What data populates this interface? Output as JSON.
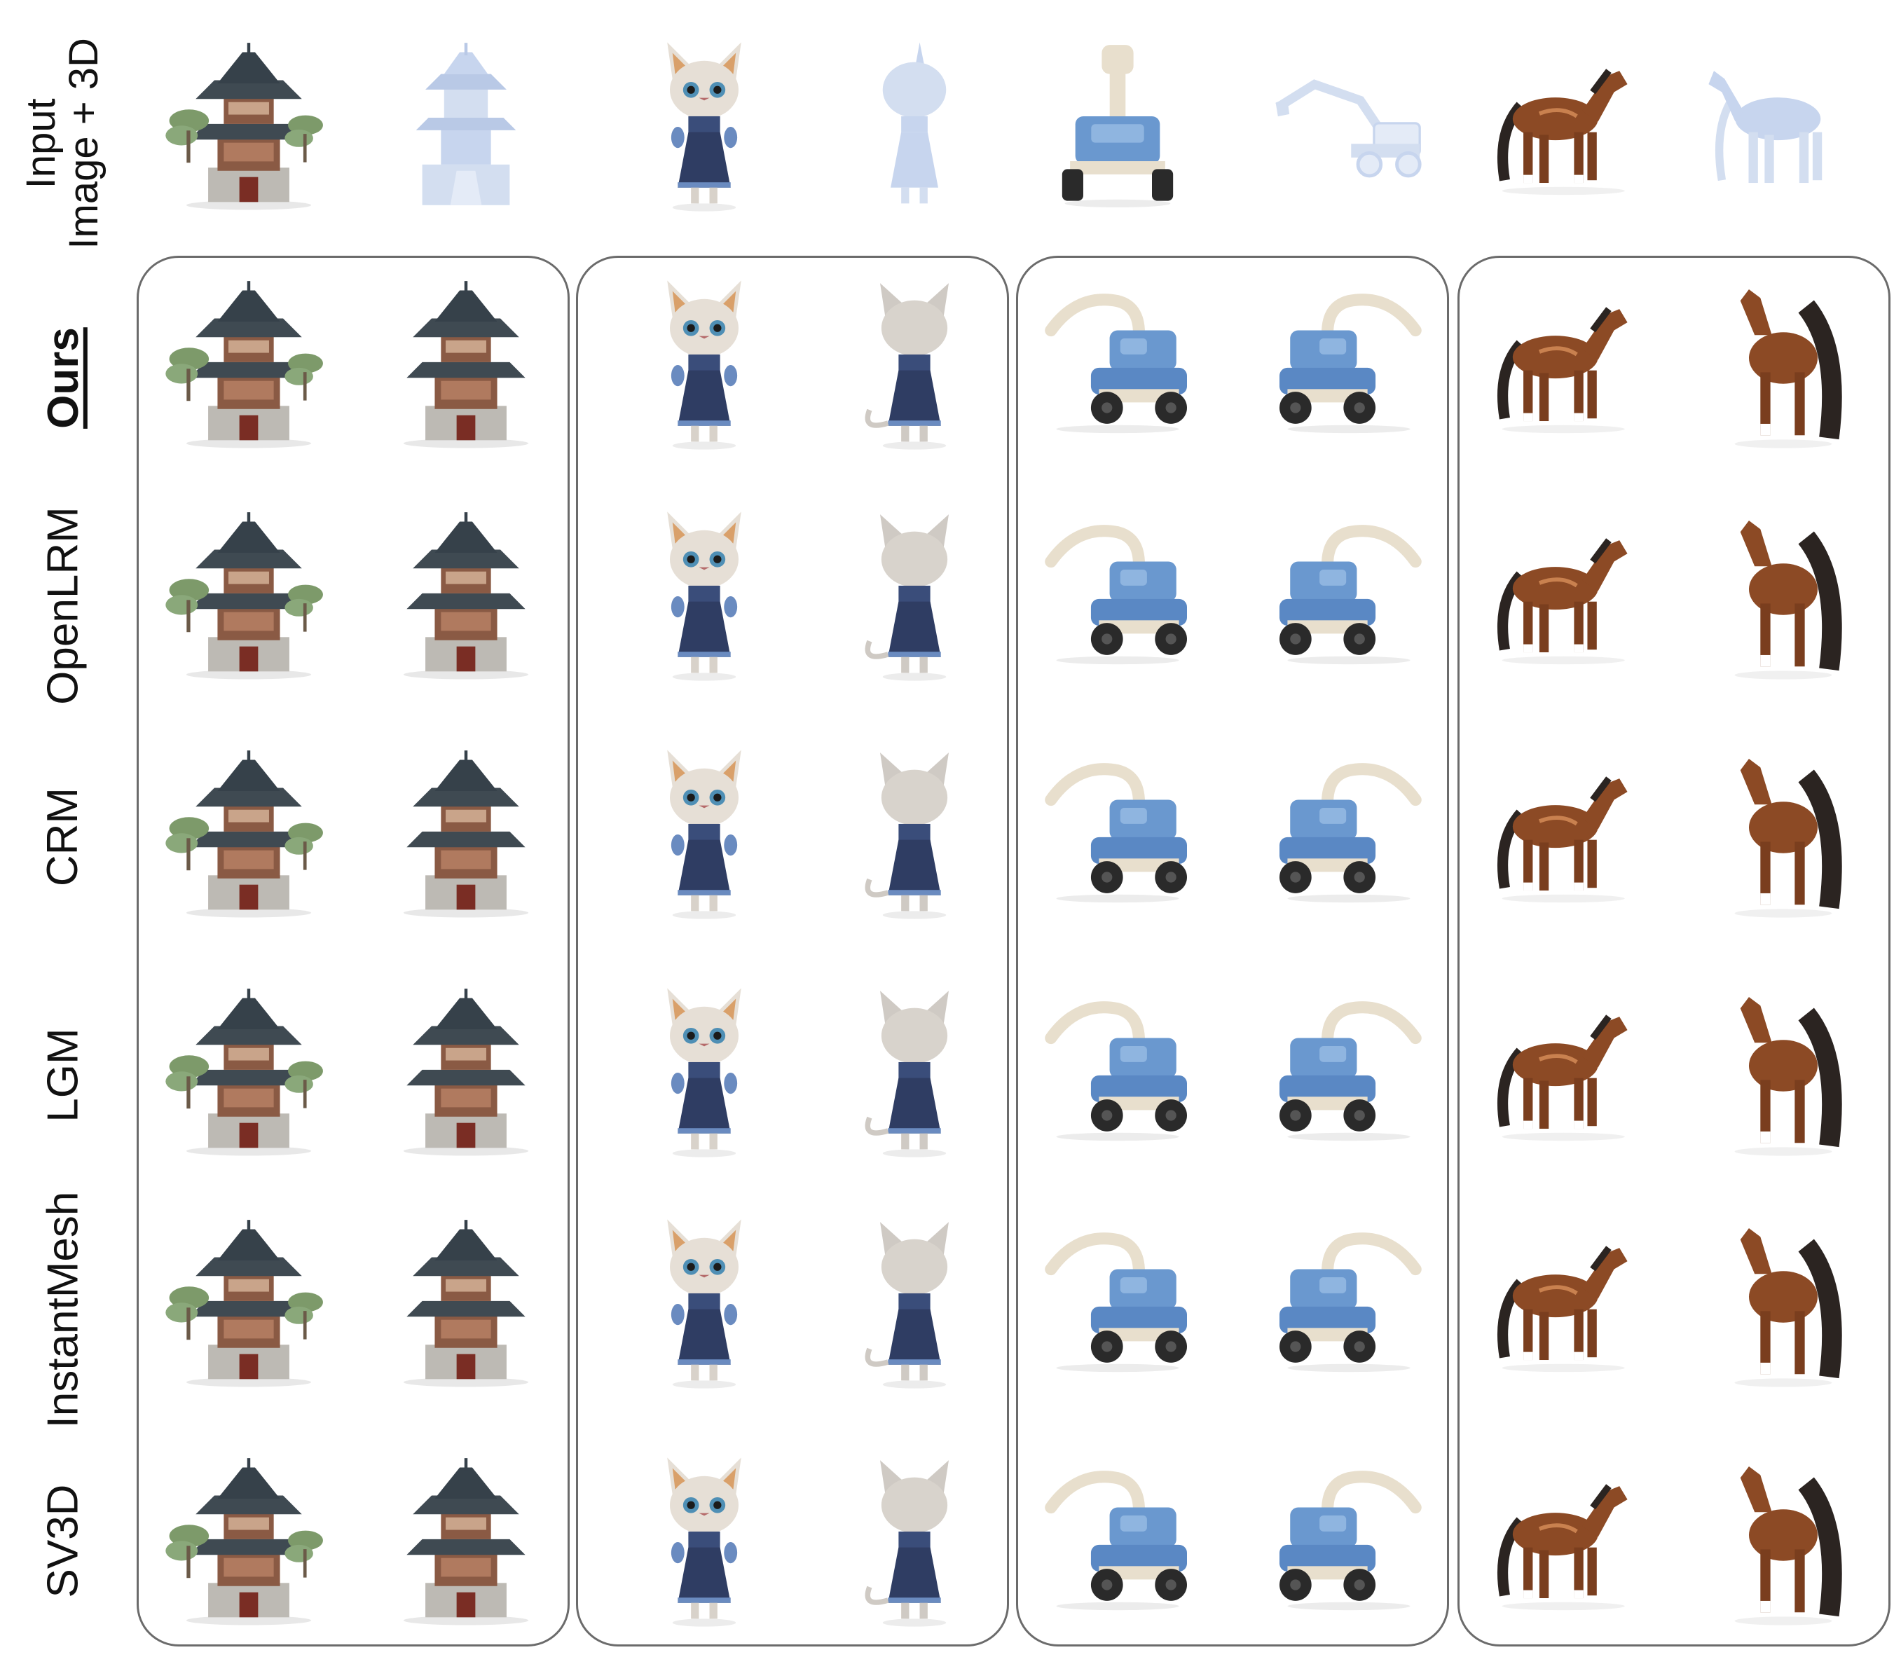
{
  "figure": {
    "row_labels": [
      "Input\nImage + 3D",
      "Ours",
      "OpenLRM",
      "CRM",
      "LGM",
      "InstantMesh",
      "SV3D"
    ],
    "methods_bold": "Ours",
    "groups": [
      "pagoda",
      "cat",
      "excavator",
      "horse"
    ],
    "colors": {
      "pagoda_roof": "#3f4a52",
      "pagoda_wall": "#8a5a44",
      "pagoda_base": "#bdbab4",
      "tree": "#7d9a6a",
      "cat_fur": "#e6dfd6",
      "cat_dress": "#2f3d63",
      "cat_ear": "#d9a06a",
      "toy_blue": "#6a98cf",
      "toy_arm": "#e8dfcd",
      "toy_wheel": "#2a2a2a",
      "horse": "#8c4a25",
      "horse_mane": "#2b2421",
      "mesh": "#c7d5ee",
      "box_border": "#6b6b6b"
    }
  }
}
